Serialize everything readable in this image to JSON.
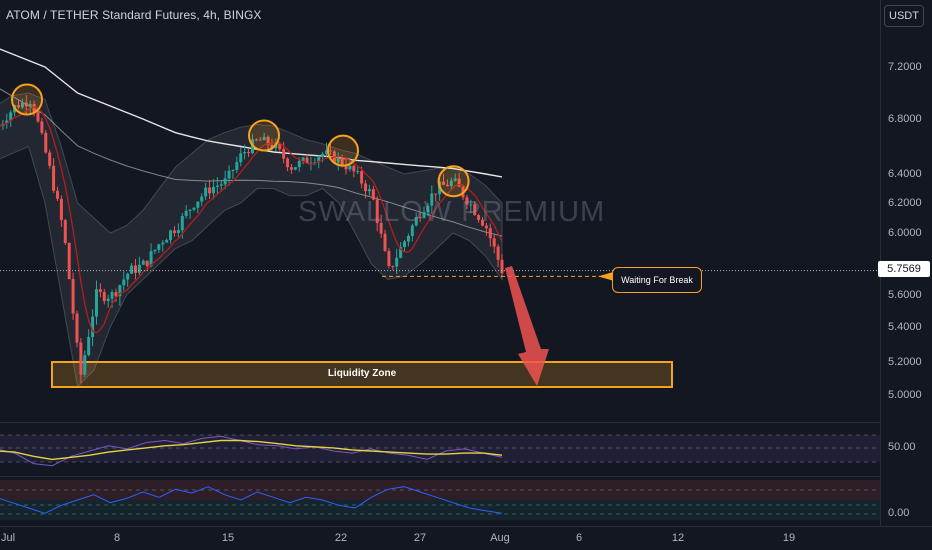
{
  "header": {
    "title": "ATOM / TETHER Standard Futures, 4h, BINGX",
    "currency_button": "USDT"
  },
  "watermark": "SWALLOW PREMIUM",
  "annotations": {
    "callout": "Waiting For Break",
    "zone_label": "Liquidity Zone"
  },
  "colors": {
    "background": "#131722",
    "up_candle": "#26a69a",
    "down_candle": "#ef5350",
    "highlight": "#f7a21b",
    "ma_slow": "#e6e6e6",
    "ma_fast_up": "#4caf50",
    "ma_fast_down": "#b71c1c",
    "rsi_line": "#7e57c2",
    "rsi_ma": "#e3d53f",
    "osc_line": "#2962ff"
  },
  "chart_data": [
    {
      "type": "candlestick",
      "title": "ATOM / TETHER Standard Futures, 4h, BINGX",
      "price_axis": {
        "ticks": [
          "7.2000",
          "6.8000",
          "6.4000",
          "6.2000",
          "6.0000",
          "5.6000",
          "5.4000",
          "5.2000",
          "5.0000"
        ],
        "ylim": [
          4.8,
          7.5
        ],
        "current_price": "5.7569"
      },
      "time_axis": {
        "ticks": [
          "Jul",
          "8",
          "15",
          "22",
          "27",
          "Aug",
          "6",
          "12",
          "19"
        ]
      },
      "key_points": [
        {
          "date": "Jul 1",
          "price": 6.95,
          "label": "high"
        },
        {
          "date": "Jul 5",
          "price": 5.02,
          "label": "low"
        },
        {
          "date": "Jul 16",
          "price": 6.68,
          "label": "high"
        },
        {
          "date": "Jul 21",
          "price": 6.57,
          "label": "high"
        },
        {
          "date": "Jul 24",
          "price": 5.72,
          "label": "low"
        },
        {
          "date": "Jul 28",
          "price": 6.35,
          "label": "high"
        },
        {
          "date": "Aug 1",
          "price": 5.76,
          "label": "last"
        }
      ],
      "series": [
        {
          "name": "Close",
          "values": [
            6.75,
            6.9,
            6.95,
            6.5,
            6.0,
            5.1,
            5.6,
            5.6,
            5.75,
            5.8,
            5.95,
            6.05,
            6.2,
            6.3,
            6.35,
            6.55,
            6.65,
            6.6,
            6.45,
            6.5,
            6.55,
            6.5,
            6.4,
            6.25,
            5.75,
            5.95,
            6.15,
            6.3,
            6.35,
            6.2,
            6.05,
            5.76
          ]
        },
        {
          "name": "MA slow",
          "values": [
            7.35,
            7.3,
            7.25,
            7.2,
            7.1,
            7.0,
            6.95,
            6.9,
            6.85,
            6.8,
            6.75,
            6.7,
            6.67,
            6.64,
            6.62,
            6.6,
            6.58,
            6.56,
            6.55,
            6.54,
            6.53,
            6.52,
            6.5,
            6.49,
            6.48,
            6.47,
            6.46,
            6.45,
            6.44,
            6.42,
            6.4,
            6.38
          ]
        }
      ],
      "highlighted_highs": [
        {
          "date": "Jul 1",
          "price": 6.95
        },
        {
          "date": "Jul 16",
          "price": 6.68
        },
        {
          "date": "Jul 21",
          "price": 6.57
        },
        {
          "date": "Jul 28",
          "price": 6.35
        }
      ],
      "levels": [
        {
          "name": "Waiting For Break",
          "price": 5.72
        },
        {
          "name": "Liquidity Zone",
          "from": 5.05,
          "to": 5.2
        }
      ]
    },
    {
      "type": "line",
      "indicator": "oscillator 1",
      "ticks": [
        "50.00"
      ],
      "series": [
        {
          "values": [
            52,
            48,
            38,
            36,
            45,
            50,
            55,
            52,
            58,
            60,
            57,
            62,
            64,
            60,
            56,
            55,
            52,
            54,
            50,
            48,
            52,
            48,
            46,
            42,
            50,
            52,
            48,
            44
          ]
        },
        {
          "values": [
            50,
            49,
            45,
            42,
            44,
            46,
            49,
            51,
            53,
            55,
            56,
            58,
            60,
            60,
            59,
            57,
            55,
            54,
            53,
            51,
            50,
            49,
            48,
            47,
            47,
            48,
            48,
            46
          ]
        }
      ]
    },
    {
      "type": "line",
      "indicator": "oscillator 2",
      "ticks": [
        "0.00"
      ],
      "series": [
        {
          "values": [
            30,
            20,
            10,
            0,
            15,
            25,
            35,
            20,
            28,
            40,
            30,
            45,
            38,
            50,
            35,
            25,
            40,
            30,
            20,
            30,
            25,
            15,
            10,
            30,
            45,
            50,
            40,
            30,
            20,
            10,
            5,
            0
          ]
        }
      ]
    }
  ]
}
